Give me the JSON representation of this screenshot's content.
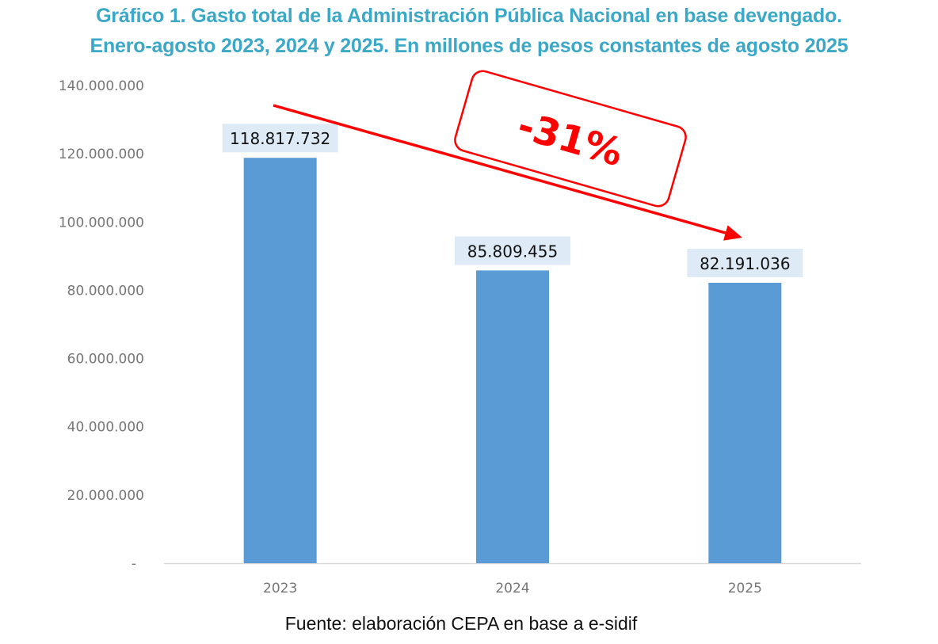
{
  "chart_data": {
    "type": "bar",
    "title": "Gráfico 1. Gasto total de la Administración Pública Nacional en base devengado.",
    "subtitle": "Enero-agosto 2023, 2024 y 2025. En millones de pesos constantes de agosto 2025",
    "xlabel": "",
    "ylabel": "",
    "categories": [
      "2023",
      "2024",
      "2025"
    ],
    "values": [
      118817732,
      85809455,
      82191036
    ],
    "data_labels": [
      "118.817.732",
      "85.809.455",
      "82.191.036"
    ],
    "ylim": [
      0,
      140000000
    ],
    "y_ticks": [
      0,
      20000000,
      40000000,
      60000000,
      80000000,
      100000000,
      120000000,
      140000000
    ],
    "y_tick_labels": [
      "-",
      "20.000.000",
      "40.000.000",
      "60.000.000",
      "80.000.000",
      "100.000.000",
      "120.000.000",
      "140.000.000"
    ],
    "grid": false,
    "legend": "none",
    "annotation": {
      "text": "-31%",
      "type": "arrow",
      "from_category": "2023",
      "to_category": "2025"
    },
    "source": "Fuente: elaboración CEPA en base a e-sidif",
    "colors": {
      "bar": "#5b9bd5",
      "label_bg": "#deebf7",
      "title": "#3aa8c6",
      "annotation": "#ff0000",
      "axis": "#d9d9d9",
      "tick_text": "#767676"
    }
  }
}
